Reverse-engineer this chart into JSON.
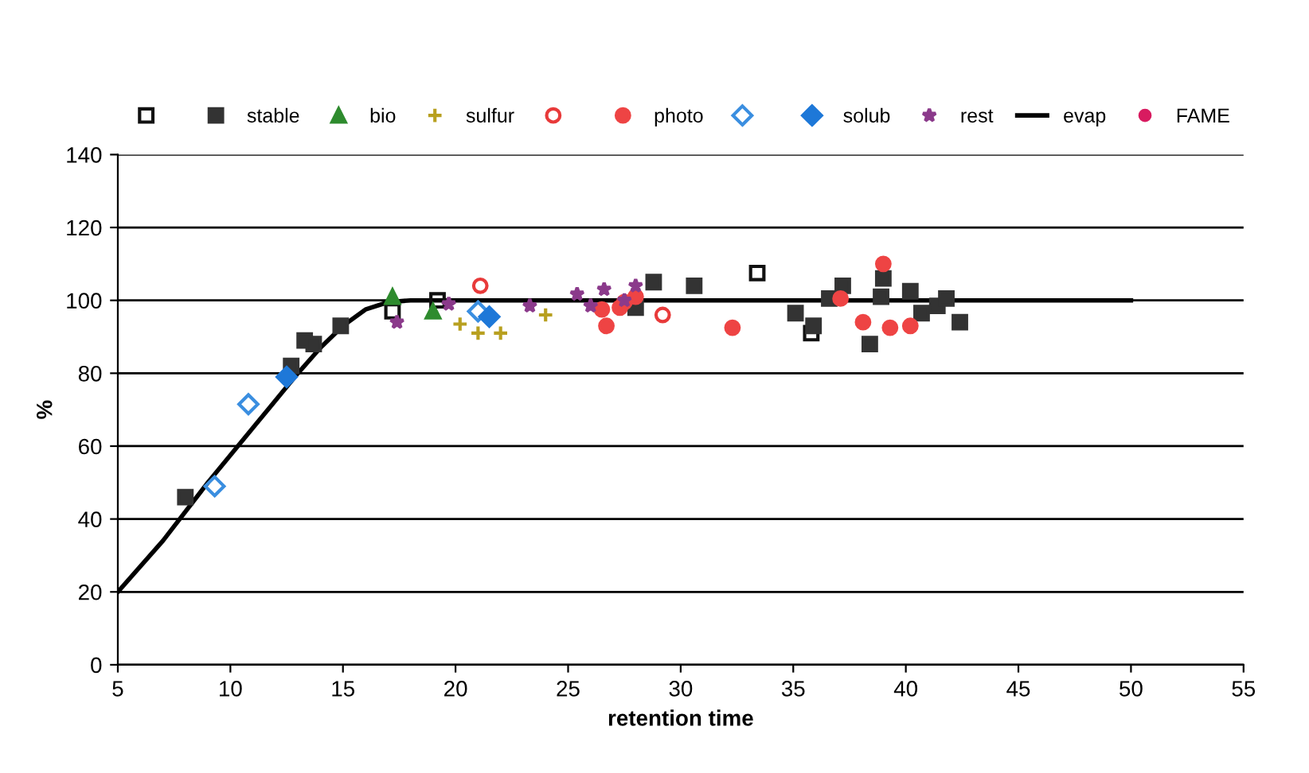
{
  "chart_data": {
    "type": "scatter",
    "xlabel": "retention time",
    "ylabel": "%",
    "xlim": [
      5,
      55
    ],
    "xticks": [
      5,
      10,
      15,
      20,
      25,
      30,
      35,
      40,
      45,
      50,
      55
    ],
    "ylim": [
      0,
      140
    ],
    "yticks": [
      0,
      20,
      40,
      60,
      80,
      100,
      120,
      140
    ],
    "grid": "y",
    "legend": "top",
    "series": [
      {
        "name": null,
        "color": "#111111",
        "marker": "square",
        "x": [
          17.2,
          19.2,
          33.4,
          35.8
        ],
        "values": [
          97,
          100,
          107.5,
          91
        ]
      },
      {
        "name": "stable",
        "color": "#333333",
        "marker": "square",
        "x": [
          8.0,
          12.7,
          13.3,
          13.7,
          14.9,
          28.0,
          28.8,
          30.6,
          35.1,
          35.9,
          36.6,
          37.2,
          38.4,
          38.9,
          39.0,
          40.2,
          40.7,
          41.4,
          41.8,
          42.4
        ],
        "values": [
          46,
          82,
          89,
          88,
          93,
          98,
          105,
          104,
          96.5,
          93,
          100.5,
          104,
          88,
          101,
          106,
          102.5,
          96.5,
          98.5,
          100.5,
          94
        ]
      },
      {
        "name": "bio",
        "color": "#2e8b2e",
        "marker": "triangle",
        "x": [
          17.2,
          19.0
        ],
        "values": [
          101,
          97
        ]
      },
      {
        "name": "sulfur",
        "color": "#b8a020",
        "marker": "cross",
        "x": [
          20.2,
          21.0,
          22.0,
          24.0
        ],
        "values": [
          93.5,
          91,
          91,
          96
        ]
      },
      {
        "name": null,
        "color": "#e83a3a",
        "marker": "circle",
        "x": [
          21.1,
          29.2
        ],
        "values": [
          104,
          96
        ]
      },
      {
        "name": "photo",
        "color": "#ee4444",
        "marker": "circle",
        "x": [
          26.5,
          26.7,
          27.3,
          27.5,
          28.0,
          32.3,
          37.1,
          38.1,
          39.0,
          39.3,
          40.2
        ],
        "values": [
          97.5,
          93,
          98,
          99.5,
          101,
          92.5,
          100.5,
          94,
          110,
          92.5,
          93
        ]
      },
      {
        "name": null,
        "color": "#3a8ee0",
        "marker": "diamond",
        "x": [
          9.3,
          10.8,
          21.0
        ],
        "values": [
          49,
          71.5,
          97
        ]
      },
      {
        "name": "solub",
        "color": "#1e78d8",
        "marker": "diamond",
        "x": [
          12.5,
          21.5
        ],
        "values": [
          79,
          95.5
        ]
      },
      {
        "name": "rest",
        "color": "#8b3a8b",
        "marker": "star",
        "x": [
          17.4,
          19.7,
          23.3,
          25.4,
          26.0,
          26.6,
          27.5,
          28.0
        ],
        "values": [
          94,
          99,
          98.5,
          101.7,
          98.5,
          103,
          100,
          104
        ]
      },
      {
        "name": "evap",
        "type": "line",
        "color": "#000000",
        "x": [
          5,
          7,
          9,
          11,
          13,
          14,
          15,
          16,
          17,
          18,
          50
        ],
        "values": [
          20,
          34,
          50,
          65,
          80,
          87,
          93,
          97.5,
          99.5,
          100,
          100
        ]
      },
      {
        "name": "FAME",
        "color": "#d81b60",
        "marker": "circle"
      }
    ]
  }
}
